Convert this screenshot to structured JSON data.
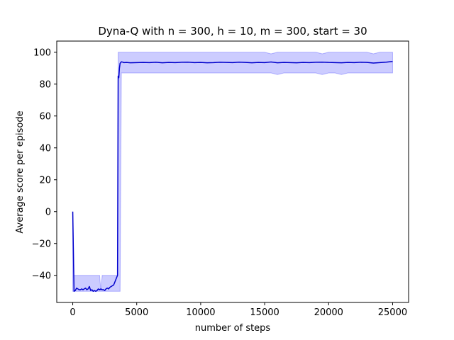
{
  "chart_data": {
    "type": "line",
    "title": "Dyna-Q with n = 300, h = 10, m = 300, start = 30",
    "xlabel": "number of steps",
    "ylabel": "Average score per episode",
    "xlim": [
      -1250,
      26250
    ],
    "ylim": [
      -57,
      107
    ],
    "xticks": [
      0,
      5000,
      10000,
      15000,
      20000,
      25000
    ],
    "yticks": [
      -40,
      -20,
      0,
      20,
      40,
      60,
      80,
      100
    ],
    "ytick_labels": [
      "−40",
      "−20",
      "0",
      "20",
      "40",
      "60",
      "80",
      "100"
    ],
    "grid": false,
    "colors": {
      "line": "#0000cc",
      "band": "#0000ff"
    },
    "series": [
      {
        "x": [
          0,
          100,
          200,
          300,
          400,
          500,
          600,
          700,
          800,
          900,
          1000,
          1100,
          1200,
          1300,
          1400,
          1500,
          1600,
          1700,
          1800,
          1900,
          2000,
          2100,
          2200,
          2300,
          2400,
          2500,
          2600,
          2700,
          2800,
          2900,
          3000,
          3100,
          3200,
          3300,
          3400,
          3500,
          3550,
          3600,
          3650,
          3700,
          3800,
          3900,
          4000,
          4200,
          4500,
          5000,
          5500,
          6000,
          6500,
          7000,
          7500,
          8000,
          8500,
          9000,
          9500,
          10000,
          10500,
          11000,
          11500,
          12000,
          12500,
          13000,
          13500,
          14000,
          14500,
          15000,
          15500,
          16000,
          16500,
          17000,
          17500,
          18000,
          18500,
          19000,
          19500,
          20000,
          20500,
          21000,
          21500,
          22000,
          22500,
          23000,
          23500,
          24000,
          24500,
          25000
        ],
        "y": [
          0,
          -50,
          -49.5,
          -48,
          -48.5,
          -49,
          -49,
          -48.5,
          -49,
          -48.5,
          -48,
          -49,
          -48.5,
          -47,
          -49.5,
          -49,
          -50,
          -49.5,
          -50,
          -49.5,
          -48.5,
          -49,
          -48.5,
          -49,
          -49,
          -49.5,
          -48.5,
          -48,
          -48.5,
          -47.5,
          -47,
          -46.5,
          -46,
          -44,
          -42,
          -40,
          85,
          84,
          90,
          93,
          94,
          93.8,
          93.5,
          93.6,
          93.4,
          93.5,
          93.6,
          93.5,
          93.7,
          93.4,
          93.6,
          93.5,
          93.7,
          93.8,
          93.5,
          93.6,
          93.4,
          93.5,
          93.7,
          93.6,
          93.5,
          93.8,
          93.6,
          93.4,
          93.6,
          93.5,
          93.9,
          93.4,
          93.6,
          93.5,
          93.4,
          93.6,
          93.5,
          93.7,
          93.8,
          93.6,
          93.5,
          93.4,
          93.6,
          93.5,
          93.7,
          93.6,
          93.2,
          93.5,
          93.8,
          94.2
        ],
        "lower": [
          -50,
          -50,
          -50,
          -50,
          -50,
          -50,
          -50,
          -50,
          -50,
          -50,
          -50,
          -50,
          -50,
          -50,
          -50,
          -50,
          -50,
          -50,
          -50,
          -50,
          -50,
          -50,
          -50,
          -50,
          -50,
          -50,
          -50,
          -50,
          -50,
          -50,
          -50,
          -50,
          -50,
          -50,
          -50,
          -50,
          -50,
          -50,
          -50,
          -50,
          87,
          87,
          87,
          87,
          87,
          87,
          87,
          87,
          87,
          87,
          87,
          87,
          87,
          87,
          87,
          87,
          87,
          87,
          87,
          87,
          87,
          87,
          87,
          87,
          87,
          87,
          87,
          86,
          87,
          87,
          87,
          87,
          87,
          87,
          86,
          87,
          87,
          86,
          87,
          87,
          87,
          87,
          87,
          87,
          87,
          87
        ],
        "upper": [
          0,
          -40,
          -40,
          -40,
          -40,
          -40,
          -40,
          -40,
          -40,
          -40,
          -40,
          -40,
          -40,
          -40,
          -40,
          -40,
          -40,
          -40,
          -40,
          -40,
          -40,
          -40,
          -50,
          -40,
          -40,
          -40,
          -40,
          -40,
          -40,
          -40,
          -40,
          -40,
          -40,
          -40,
          -40,
          -40,
          100,
          100,
          100,
          100,
          100,
          100,
          100,
          100,
          100,
          100,
          100,
          100,
          100,
          100,
          100,
          100,
          100,
          100,
          100,
          100,
          100,
          100,
          100,
          100,
          100,
          100,
          100,
          100,
          100,
          100,
          99,
          100,
          100,
          100,
          100,
          100,
          100,
          100,
          99,
          100,
          100,
          100,
          100,
          100,
          100,
          100,
          99,
          100,
          100,
          100
        ]
      }
    ]
  }
}
